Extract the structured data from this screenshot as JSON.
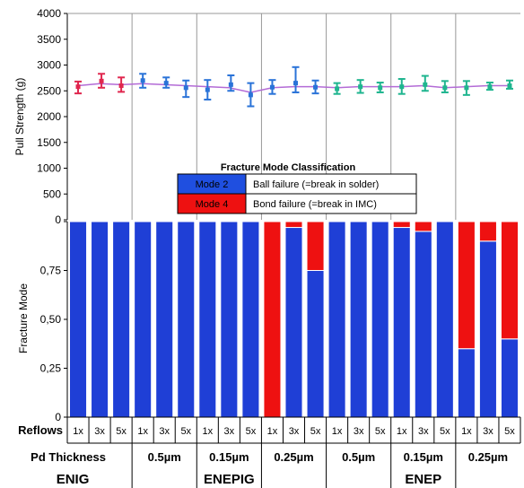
{
  "chart_data": [
    {
      "type": "line",
      "ylabel": "Pull Strength (g)",
      "ylim": [
        0,
        4000
      ],
      "yticks": [
        "4000",
        "3500",
        "3000",
        "2500",
        "2000",
        "1500",
        "1000",
        "500",
        "0"
      ],
      "grid": false,
      "note": "error-bar pull strength per reflow condition with mean trend line",
      "x": [
        "1x",
        "3x",
        "5x",
        "1x",
        "3x",
        "5x",
        "1x",
        "3x",
        "5x",
        "1x",
        "3x",
        "5x",
        "1x",
        "3x",
        "5x",
        "1x",
        "3x",
        "5x",
        "1x",
        "3x",
        "5x"
      ],
      "series": [
        {
          "name": "",
          "mean": [
            2580,
            2690,
            2600,
            2700,
            2650,
            2560,
            2520,
            2620,
            2420,
            2570,
            2650,
            2570,
            2540,
            2580,
            2560,
            2580,
            2620,
            2560,
            2560,
            2580,
            2600
          ],
          "min": [
            2450,
            2560,
            2480,
            2560,
            2560,
            2380,
            2330,
            2500,
            2200,
            2440,
            2470,
            2450,
            2440,
            2460,
            2470,
            2440,
            2500,
            2470,
            2420,
            2520,
            2540
          ],
          "max": [
            2680,
            2830,
            2760,
            2830,
            2760,
            2700,
            2710,
            2800,
            2650,
            2710,
            2960,
            2700,
            2650,
            2710,
            2660,
            2730,
            2790,
            2690,
            2690,
            2660,
            2700
          ],
          "trend": [
            2600,
            2640,
            2620,
            2640,
            2620,
            2600,
            2580,
            2560,
            2470,
            2560,
            2580,
            2580,
            2560,
            2580,
            2580,
            2580,
            2600,
            2560,
            2580,
            2600,
            2600
          ]
        }
      ],
      "colors": [
        "#e0264e",
        "#e0264e",
        "#e0264e",
        "#2a73d8",
        "#2a73d8",
        "#2a73d8",
        "#2a73d8",
        "#2a73d8",
        "#2a73d8",
        "#2a73d8",
        "#2a73d8",
        "#2a73d8",
        "#1fb58f",
        "#1fb58f",
        "#1fb58f",
        "#1fb58f",
        "#1fb58f",
        "#1fb58f",
        "#1fb58f",
        "#1fb58f",
        "#1fb58f"
      ],
      "trend_color": "#b36bd6"
    },
    {
      "type": "bar",
      "stacked": true,
      "ylabel": "Fracture Mode",
      "ylim": [
        0,
        1
      ],
      "yticks": [
        "0",
        "0,25",
        "0,50",
        "0,75",
        "1"
      ],
      "categories": [
        "1x",
        "3x",
        "5x",
        "1x",
        "3x",
        "5x",
        "1x",
        "3x",
        "5x",
        "1x",
        "3x",
        "5x",
        "1x",
        "3x",
        "5x",
        "1x",
        "3x",
        "5x",
        "1x",
        "3x",
        "5x"
      ],
      "series": [
        {
          "name": "Mode 2",
          "color": "#1f3fd6",
          "values": [
            1,
            1,
            1,
            1,
            1,
            1,
            1,
            1,
            1,
            0,
            0.97,
            0.75,
            1,
            1,
            1,
            0.97,
            0.95,
            1,
            0.35,
            0.9,
            0.4
          ]
        },
        {
          "name": "Mode 4",
          "color": "#ee1111",
          "values": [
            0,
            0,
            0,
            0,
            0,
            0,
            0,
            0,
            0,
            1,
            0.03,
            0.25,
            0,
            0,
            0,
            0.03,
            0.05,
            0,
            0.65,
            0.1,
            0.6
          ]
        }
      ],
      "legend": {
        "title": "Fracture Mode Classification",
        "items": [
          {
            "label": "Mode 2",
            "desc": "Ball failure (=break in solder)",
            "color": "#1f4fe0"
          },
          {
            "label": "Mode 4",
            "desc": "Bond failure (=break in IMC)",
            "color": "#ee1111"
          }
        ]
      },
      "xaxis": {
        "row1_label": "Reflows",
        "row2_label": "Pd Thickness",
        "pd_groups": [
          {
            "label": "Pd Thickness",
            "span": 3
          },
          {
            "label": "0.5µm",
            "span": 3
          },
          {
            "label": "0.15µm",
            "span": 3
          },
          {
            "label": "0.25µm",
            "span": 3
          },
          {
            "label": "0.5µm",
            "span": 3
          },
          {
            "label": "0.15µm",
            "span": 3
          },
          {
            "label": "0.25µm",
            "span": 3
          }
        ],
        "finish_groups": [
          {
            "label": "ENIG",
            "span": 3
          },
          {
            "label": "ENEPIG",
            "span": 9
          },
          {
            "label": "ENEP",
            "span": 9
          }
        ]
      }
    }
  ]
}
